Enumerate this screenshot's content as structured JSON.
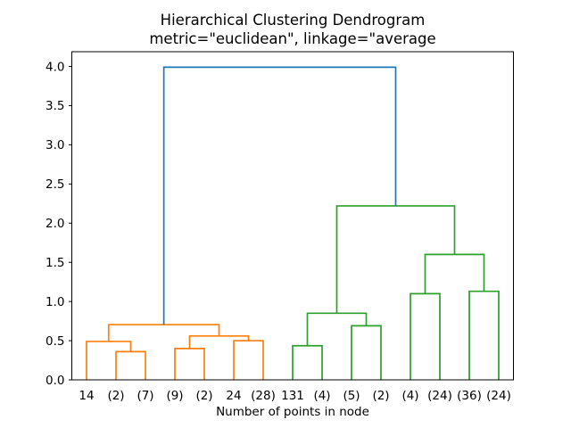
{
  "chart_data": {
    "type": "dendrogram",
    "title": "Hierarchical Clustering Dendrogram",
    "subtitle": "metric=\"euclidean\", linkage=\"average",
    "xlabel": "Number of points in node",
    "ylabel": "",
    "leaf_labels": [
      "14",
      "(2)",
      "(7)",
      "(9)",
      "(2)",
      "24",
      "(28)",
      "131",
      "(4)",
      "(5)",
      "(2)",
      "(4)",
      "(24)",
      "(36)",
      "(24)"
    ],
    "leaf_positions": [
      5,
      15,
      25,
      35,
      45,
      55,
      65,
      75,
      85,
      95,
      105,
      115,
      125,
      135,
      145
    ],
    "ytick_values": [
      0.0,
      0.5,
      1.0,
      1.5,
      2.0,
      2.5,
      3.0,
      3.5,
      4.0
    ],
    "ytick_labels": [
      "0.0",
      "0.5",
      "1.0",
      "1.5",
      "2.0",
      "2.5",
      "3.0",
      "3.5",
      "4.0"
    ],
    "xlim": [
      0,
      150
    ],
    "ylim": [
      0,
      4.19
    ],
    "grid": false,
    "colors": {
      "left_cluster": "#ff7f0e",
      "right_cluster": "#2ca02c",
      "root_link": "#1f77b4",
      "spine": "#000000"
    },
    "links": [
      {
        "x1": 15,
        "y1": 0,
        "x2": 25,
        "y2": 0,
        "h": 0.36,
        "color": "#ff7f0e"
      },
      {
        "x1": 5,
        "y1": 0,
        "x2": 20,
        "y2": 0.36,
        "h": 0.49,
        "color": "#ff7f0e"
      },
      {
        "x1": 35,
        "y1": 0,
        "x2": 45,
        "y2": 0,
        "h": 0.4,
        "color": "#ff7f0e"
      },
      {
        "x1": 55,
        "y1": 0,
        "x2": 65,
        "y2": 0,
        "h": 0.5,
        "color": "#ff7f0e"
      },
      {
        "x1": 40,
        "y1": 0.4,
        "x2": 60,
        "y2": 0.5,
        "h": 0.56,
        "color": "#ff7f0e"
      },
      {
        "x1": 12.5,
        "y1": 0.49,
        "x2": 50,
        "y2": 0.56,
        "h": 0.705,
        "color": "#ff7f0e"
      },
      {
        "x1": 75,
        "y1": 0,
        "x2": 85,
        "y2": 0,
        "h": 0.435,
        "color": "#2ca02c"
      },
      {
        "x1": 95,
        "y1": 0,
        "x2": 105,
        "y2": 0,
        "h": 0.69,
        "color": "#2ca02c"
      },
      {
        "x1": 80,
        "y1": 0.435,
        "x2": 100,
        "y2": 0.69,
        "h": 0.85,
        "color": "#2ca02c"
      },
      {
        "x1": 115,
        "y1": 0,
        "x2": 125,
        "y2": 0,
        "h": 1.1,
        "color": "#2ca02c"
      },
      {
        "x1": 135,
        "y1": 0,
        "x2": 145,
        "y2": 0,
        "h": 1.13,
        "color": "#2ca02c"
      },
      {
        "x1": 120,
        "y1": 1.1,
        "x2": 140,
        "y2": 1.13,
        "h": 1.6,
        "color": "#2ca02c"
      },
      {
        "x1": 90,
        "y1": 0.85,
        "x2": 130,
        "y2": 1.6,
        "h": 2.22,
        "color": "#2ca02c"
      },
      {
        "x1": 31.25,
        "y1": 0.705,
        "x2": 110,
        "y2": 2.22,
        "h": 3.99,
        "color": "#1f77b4"
      }
    ]
  }
}
